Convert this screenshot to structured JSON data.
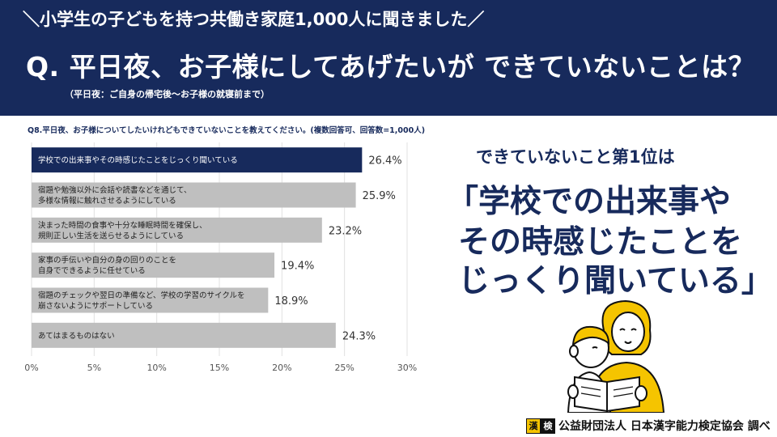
{
  "header": {
    "survey_line": "＼小学生の子どもを持つ共働き家庭1,000人に聞きました／",
    "question": "Q. 平日夜、お子様にしてあげたいが できていないことは？",
    "note": "（平日夜：ご自身の帰宅後〜お子様の就寝前まで）"
  },
  "chart_question": "Q8.平日夜、お子様についてしたいけれどもできていないことを教えてください。(複数回答可、回答数=1,000人)",
  "callout": {
    "top": "できていないこと第1位は",
    "line1": "「学校での出来事や",
    "line2": "その時感じたことを",
    "line3": "じっくり聞いている」"
  },
  "credit": {
    "logo_left": "漢",
    "logo_right": "検",
    "text": "公益財団法人 日本漢字能力検定協会 調べ"
  },
  "colors": {
    "navy": "#172a5c",
    "gray_bar": "#bfbfbf",
    "accent_yellow": "#f5c400"
  },
  "chart_data": {
    "type": "bar",
    "orientation": "horizontal",
    "categories": [
      [
        "学校での出来事やその時感じたことをじっくり聞いている"
      ],
      [
        "宿題や勉強以外に会話や読書などを通じて、",
        "多様な情報に触れさせるようにしている"
      ],
      [
        "決まった時間の食事や十分な睡眠時間を確保し、",
        "規則正しい生活を送らせるようにしている"
      ],
      [
        "家事の手伝いや自分の身の回りのことを",
        "自身でできるように任せている"
      ],
      [
        "宿題のチェックや翌日の準備など、学校の学習のサイクルを",
        "崩さないようにサポートしている"
      ],
      [
        "あてはまるものはない"
      ]
    ],
    "values": [
      26.4,
      25.9,
      23.2,
      19.4,
      18.9,
      24.3
    ],
    "value_labels": [
      "26.4%",
      "25.9%",
      "23.2%",
      "19.4%",
      "18.9%",
      "24.3%"
    ],
    "highlight_index": 0,
    "xlim": [
      0,
      30
    ],
    "xticks": [
      "0%",
      "5%",
      "10%",
      "15%",
      "20%",
      "25%",
      "30%"
    ],
    "grid": true
  }
}
